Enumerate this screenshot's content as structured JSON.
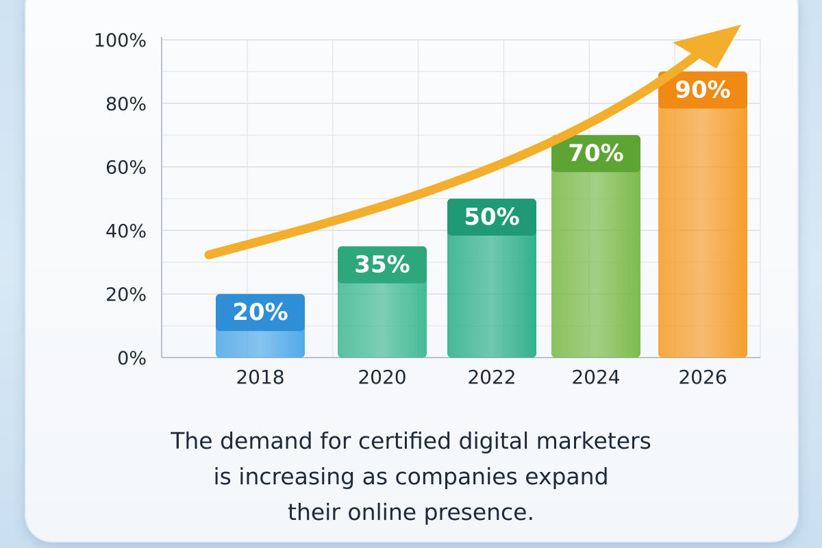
{
  "chart_data": {
    "type": "bar",
    "categories": [
      "2018",
      "2020",
      "2022",
      "2024",
      "2026"
    ],
    "values": [
      20,
      35,
      50,
      70,
      90
    ],
    "value_labels": [
      "20%",
      "35%",
      "50%",
      "70%",
      "90%"
    ],
    "ylim": [
      0,
      100
    ],
    "yticks": [
      0,
      20,
      40,
      60,
      80,
      100
    ],
    "ytick_labels": [
      "0%",
      "20%",
      "40%",
      "60%",
      "80%",
      "100%"
    ],
    "grid": true,
    "trend_arrow": true,
    "bar_colors": [
      "#4aa6e8",
      "#3bb88f",
      "#27ad86",
      "#76b843",
      "#f59a22"
    ],
    "label_colors": [
      "#2f8fd6",
      "#2fa77d",
      "#1e9b74",
      "#5ea435",
      "#f08a14"
    ],
    "arrow_color": "#f3ae2c"
  },
  "caption": {
    "lines": [
      "The demand for certified digital marketers",
      "is increasing as companies expand",
      "their online presence."
    ]
  }
}
